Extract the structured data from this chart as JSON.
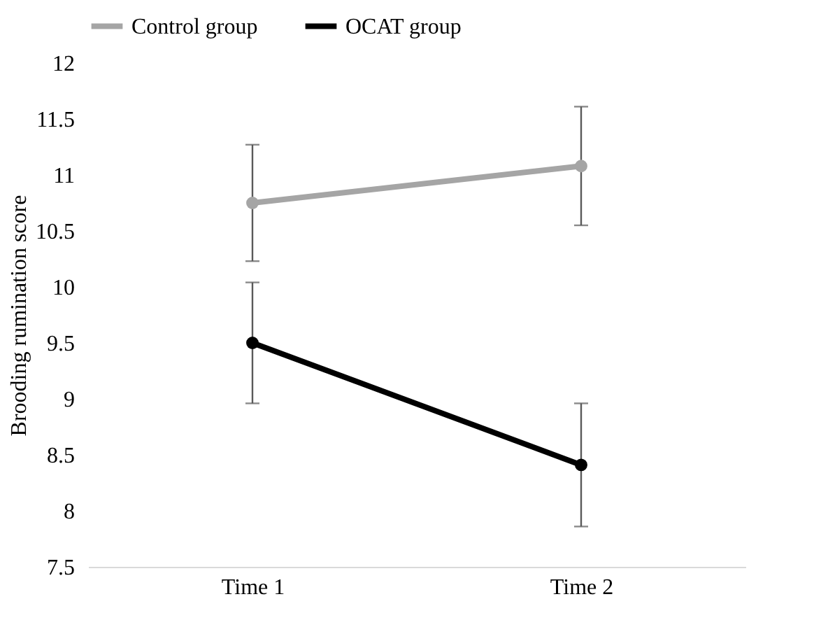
{
  "chart_data": {
    "type": "line",
    "ylabel": "Brooding rumination score",
    "categories": [
      "Time 1",
      "Time 2"
    ],
    "series": [
      {
        "name": "Control group",
        "color": "#a5a5a5",
        "values": [
          10.75,
          11.08
        ],
        "errors": [
          [
            10.23,
            11.27
          ],
          [
            10.55,
            11.61
          ]
        ]
      },
      {
        "name": "OCAT group",
        "color": "#000000",
        "values": [
          9.5,
          8.41
        ],
        "errors": [
          [
            8.96,
            10.04
          ],
          [
            7.86,
            8.96
          ]
        ]
      }
    ],
    "ylim": [
      7.5,
      12
    ],
    "yticks": [
      7.5,
      8,
      8.5,
      9,
      9.5,
      10,
      10.5,
      11,
      11.5,
      12
    ],
    "grid": false,
    "legend": "top",
    "marker": "circle",
    "line_style": "solid"
  }
}
